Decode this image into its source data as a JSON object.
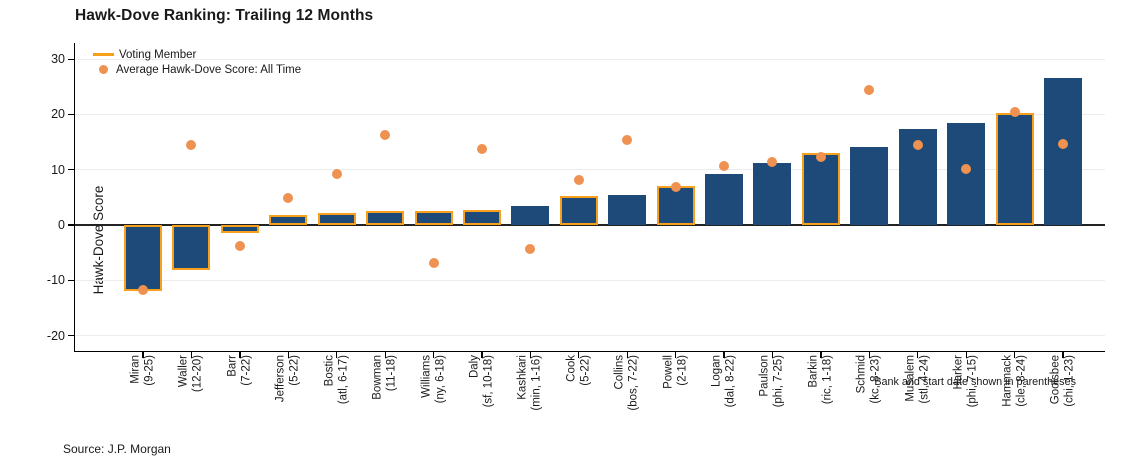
{
  "title": "Hawk-Dove Ranking: Trailing 12 Months",
  "source": "Source: J.P. Morgan",
  "legend": {
    "voting_label": "Voting Member",
    "average_label": "Average Hawk-Dove Score: All Time"
  },
  "colors": {
    "bar": "#1e4a7a",
    "voting_outline": "#f6a01e",
    "marker": "#ef9150",
    "gridline": "#ececec",
    "zeroline": "#222222"
  },
  "chart_data": {
    "type": "bar",
    "title": "Hawk-Dove Ranking: Trailing 12 Months",
    "xlabel": "",
    "ylabel": "Hawk-Dove Score",
    "ylim": [
      -23,
      33
    ],
    "yticks": [
      30,
      20,
      10,
      0,
      -10,
      -20
    ],
    "grid": true,
    "legend_position": "top-left",
    "note": "Bank and start date shown in parentheses",
    "categories": [
      "Miran",
      "Waller",
      "Barr",
      "Jefferson",
      "Bostic",
      "Bowman",
      "Williams",
      "Daly",
      "Kashkari",
      "Cook",
      "Collins",
      "Powell",
      "Logan",
      "Paulson",
      "Barkin",
      "Schmid",
      "Musalem",
      "Harker",
      "Hammack",
      "Goolsbee"
    ],
    "category_sublabels": [
      "(9-25)",
      "(12-20)",
      "(7-22)",
      "(5-22)",
      "(atl, 6-17)",
      "(11-18)",
      "(ny, 6-18)",
      "(sf, 10-18)",
      "(min, 1-16)",
      "(5-22)",
      "(bos, 7-22)",
      "(2-18)",
      "(dal, 8-22)",
      "(phi, 7-25)",
      "(ric, 1-18)",
      "(kc, 8-23)",
      "(stl, 4-24)",
      "(phi, 7-15)",
      "(cle, 8-24)",
      "(chi, 1-23)"
    ],
    "voting_members": [
      true,
      true,
      true,
      true,
      true,
      true,
      true,
      true,
      false,
      true,
      false,
      true,
      false,
      false,
      true,
      false,
      false,
      false,
      true,
      false
    ],
    "series": [
      {
        "name": "Hawk-Dove Score: Trailing 12 Months",
        "type": "bar",
        "values": [
          -11.9,
          -8.1,
          -1.5,
          1.8,
          2.2,
          2.5,
          2.5,
          2.7,
          3.5,
          5.2,
          5.5,
          7.1,
          9.3,
          11.2,
          13.0,
          14.1,
          17.3,
          18.5,
          20.2,
          26.5
        ]
      },
      {
        "name": "Average Hawk-Dove Score: All Time",
        "type": "scatter",
        "values": [
          -11.8,
          14.4,
          -3.8,
          4.8,
          9.2,
          16.3,
          -6.9,
          13.7,
          -4.3,
          8.1,
          15.3,
          6.9,
          10.7,
          11.4,
          12.3,
          24.4,
          14.5,
          10.1,
          20.4,
          14.6
        ]
      }
    ]
  }
}
